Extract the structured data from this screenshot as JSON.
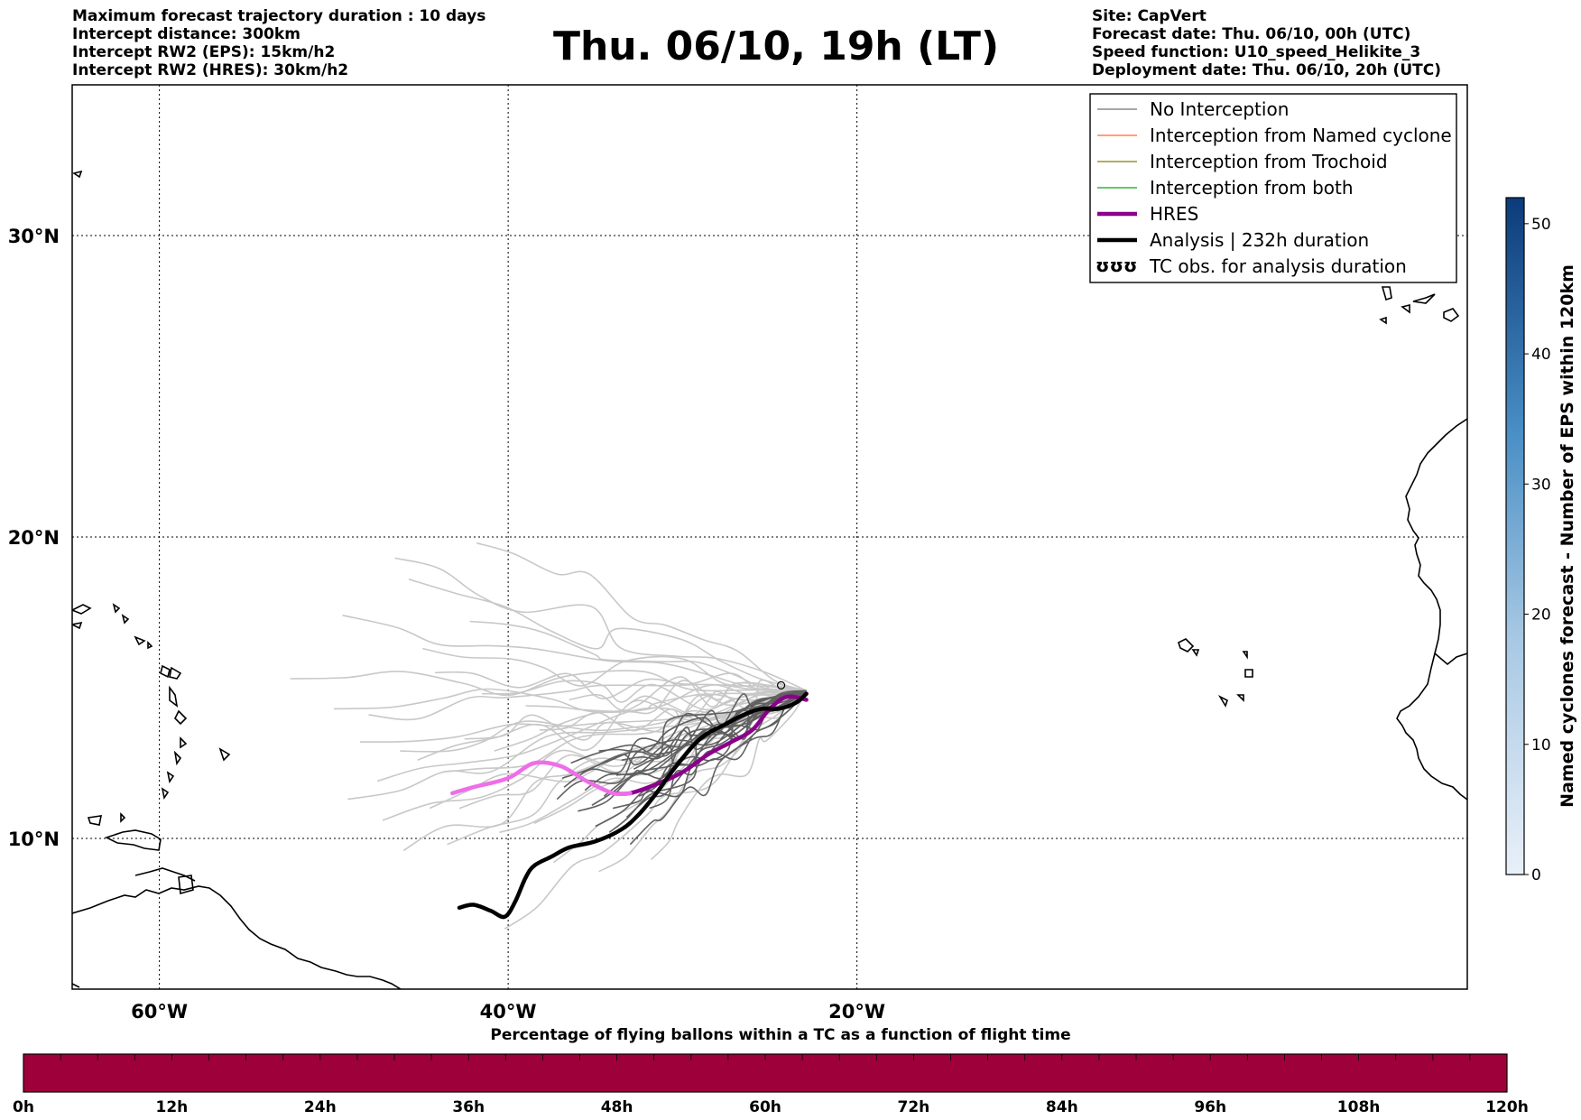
{
  "header_left": [
    "Maximum forecast trajectory duration : 10 days",
    "Intercept distance: 300km",
    "Intercept RW2 (EPS):  15km/h2",
    "Intercept RW2 (HRES): 30km/h2"
  ],
  "title": "Thu. 06/10, 19h (LT)",
  "header_right": [
    "Site: CapVert",
    "Forecast date: Thu. 06/10, 00h (UTC)",
    "Speed function: U10_speed_Helikite_3",
    "Deployment date: Thu. 06/10, 20h (UTC)"
  ],
  "map": {
    "lon_range": [
      -65,
      15
    ],
    "lat_range": [
      5,
      35
    ],
    "lat_ticks": [
      {
        "value": 10,
        "label": "10°N"
      },
      {
        "value": 20,
        "label": "20°N"
      },
      {
        "value": 30,
        "label": "30°N"
      }
    ],
    "lon_ticks": [
      {
        "value": -60,
        "label": "60°W"
      },
      {
        "value": -40,
        "label": "40°W"
      },
      {
        "value": -20,
        "label": "20°W"
      }
    ]
  },
  "legend": [
    {
      "label": "No Interception",
      "color": "#888888",
      "style": "thin"
    },
    {
      "label": "Interception from Named cyclone",
      "color": "#ff7f50",
      "style": "thin"
    },
    {
      "label": "Interception from Trochoid",
      "color": "#a09030",
      "style": "thin"
    },
    {
      "label": "Interception from both",
      "color": "#3cb043",
      "style": "thin"
    },
    {
      "label": "HRES",
      "color": "#8b008b",
      "style": "thick"
    },
    {
      "label": "Analysis | 232h duration",
      "color": "#000000",
      "style": "thick"
    },
    {
      "label": "TC obs. for analysis duration",
      "color": "#000000",
      "style": "symbol"
    }
  ],
  "legend_symbol": "ʊʊʊ",
  "colorbar_right": {
    "label": "Named cyclones forecast - Number of EPS within 120km",
    "min": 0,
    "max": 52,
    "ticks": [
      0,
      10,
      20,
      30,
      40,
      50
    ],
    "color_low": "#e8f0f9",
    "color_high": "#0b3b7a"
  },
  "colorbar_bottom": {
    "title": "Percentage of flying ballons within a TC as a function of flight time",
    "ticks": [
      "0h",
      "12h",
      "24h",
      "36h",
      "48h",
      "60h",
      "72h",
      "84h",
      "96h",
      "108h",
      "120h"
    ],
    "color": "#9e003a"
  },
  "colors": {
    "eps_near": "#606060",
    "eps_far": "#c8c8c8",
    "hres_near": "#8b008b",
    "hres_far": "#ee6ee8",
    "analysis": "#000000"
  },
  "trajectories": {
    "launch": {
      "lon": -22.9,
      "lat": 14.9
    },
    "hres": [
      [
        -22.9,
        14.6
      ],
      [
        -24,
        14.7
      ],
      [
        -25,
        14.3
      ],
      [
        -26,
        13.6
      ],
      [
        -27.2,
        13.2
      ],
      [
        -28.5,
        12.8
      ],
      [
        -30,
        12.2
      ],
      [
        -31.5,
        11.8
      ],
      [
        -33,
        11.5
      ],
      [
        -34,
        11.5
      ],
      [
        -35.5,
        11.9
      ],
      [
        -37,
        12.4
      ],
      [
        -38.5,
        12.5
      ],
      [
        -40,
        12.0
      ],
      [
        -42,
        11.7
      ],
      [
        -43.2,
        11.5
      ]
    ],
    "analysis": [
      [
        -22.9,
        14.8
      ],
      [
        -23.5,
        14.5
      ],
      [
        -24.5,
        14.3
      ],
      [
        -25.5,
        14.3
      ],
      [
        -26.5,
        14.1
      ],
      [
        -27.5,
        13.8
      ],
      [
        -29,
        13.3
      ],
      [
        -30.5,
        12.3
      ],
      [
        -31.5,
        11.5
      ],
      [
        -32.5,
        10.8
      ],
      [
        -33.5,
        10.3
      ],
      [
        -35,
        9.9
      ],
      [
        -36.5,
        9.7
      ],
      [
        -37.5,
        9.4
      ],
      [
        -38.5,
        9.1
      ],
      [
        -39,
        8.7
      ],
      [
        -39.6,
        7.9
      ],
      [
        -40.2,
        7.4
      ],
      [
        -41,
        7.6
      ],
      [
        -42,
        7.8
      ],
      [
        -42.8,
        7.7
      ]
    ],
    "eps_near_endpoints": [
      [
        -36.8,
        11.7
      ],
      [
        -35.2,
        11.1
      ],
      [
        -34,
        11.0
      ],
      [
        -35.8,
        12.2
      ],
      [
        -33.5,
        12.6
      ],
      [
        -34.5,
        11.4
      ],
      [
        -36,
        10.9
      ],
      [
        -33.2,
        10.7
      ],
      [
        -32.5,
        11.4
      ],
      [
        -37.2,
        11.3
      ],
      [
        -35,
        10.4
      ],
      [
        -33.8,
        12.1
      ],
      [
        -36.4,
        12.5
      ],
      [
        -34.8,
        12.9
      ],
      [
        -32.8,
        12.3
      ],
      [
        -31.9,
        11.0
      ],
      [
        -35.6,
        11.6
      ],
      [
        -34.2,
        10.2
      ],
      [
        -33,
        9.8
      ],
      [
        -36.9,
        12.0
      ]
    ],
    "eps_far_endpoints": [
      [
        -52.5,
        15.3
      ],
      [
        -49.5,
        17.4
      ],
      [
        -46.5,
        19.3
      ],
      [
        -45.7,
        18.6
      ],
      [
        -41.8,
        19.8
      ],
      [
        -50,
        14.3
      ],
      [
        -48,
        14.1
      ],
      [
        -44.2,
        15.5
      ],
      [
        -48.5,
        13.2
      ],
      [
        -47.5,
        11.9
      ],
      [
        -49.2,
        11.3
      ],
      [
        -44.5,
        11.0
      ],
      [
        -42.5,
        13.3
      ],
      [
        -46,
        9.6
      ],
      [
        -43.5,
        9.8
      ],
      [
        -40.5,
        10.2
      ],
      [
        -38.5,
        10.5
      ],
      [
        -40.2,
        7.0
      ],
      [
        -36.5,
        14.6
      ],
      [
        -39,
        14.4
      ],
      [
        -33,
        14.5
      ],
      [
        -31.8,
        9.3
      ],
      [
        -45.2,
        12.6
      ],
      [
        -41.5,
        14.8
      ],
      [
        -43.8,
        12.2
      ],
      [
        -47.2,
        10.6
      ],
      [
        -44.9,
        16.3
      ],
      [
        -42.2,
        17.2
      ],
      [
        -38.2,
        13.6
      ],
      [
        -40.8,
        12.9
      ],
      [
        -42.8,
        11.0
      ],
      [
        -46.2,
        12.9
      ],
      [
        -37.4,
        9.2
      ],
      [
        -34.8,
        8.9
      ]
    ]
  }
}
